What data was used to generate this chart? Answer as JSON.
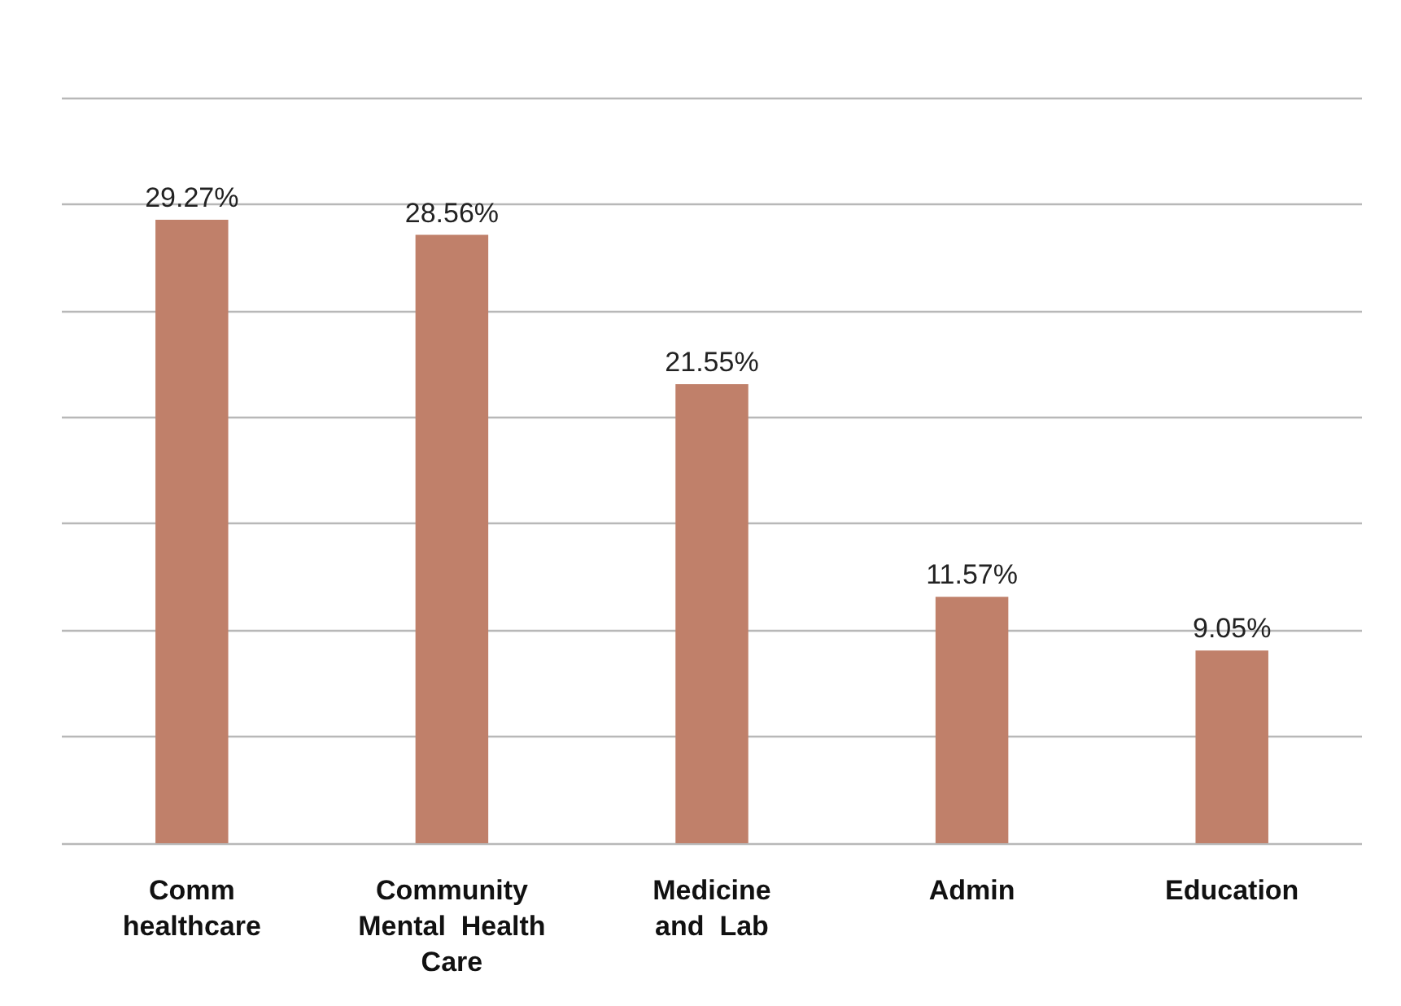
{
  "chart_data": {
    "type": "bar",
    "categories": [
      "Comm\nhealthcare",
      "Community\nMental  Health\nCare",
      "Medicine\nand  Lab",
      "Admin",
      "Education"
    ],
    "values": [
      29.27,
      28.56,
      21.55,
      11.57,
      9.05
    ],
    "value_labels": [
      "29.27%",
      "28.56%",
      "21.55%",
      "11.57%",
      "9.05%"
    ],
    "color": "#c0806a",
    "ylim": [
      0,
      35
    ],
    "yticks": [
      {
        "value": 0,
        "label": null
      },
      {
        "value": 5,
        "label": null
      },
      {
        "value": 10,
        "label": null
      },
      {
        "value": 15,
        "label": null
      },
      {
        "value": 20,
        "label": null
      },
      {
        "value": 25,
        "label": null
      },
      {
        "value": 30,
        "label": null
      },
      {
        "value": 35,
        "label": null
      }
    ],
    "grid": "y",
    "tick_labels": "x"
  }
}
